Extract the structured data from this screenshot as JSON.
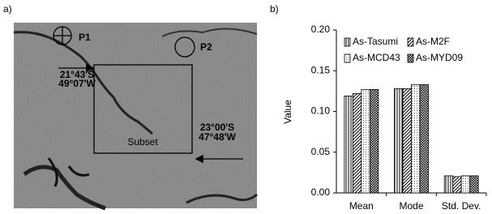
{
  "image_panel": {
    "label": "a)",
    "annotations": {
      "p1": "P1",
      "p2": "P2",
      "coord1": [
        "21°43'S",
        "49°07'W"
      ],
      "subset": "Subset",
      "coord2": [
        "23°00'S",
        "47°48'W"
      ]
    }
  },
  "chart_data": {
    "type": "bar",
    "panel_label": "b)",
    "y_label": "Value",
    "categories": [
      "Mean",
      "Mode",
      "Std. Dev."
    ],
    "series": [
      {
        "name": "As-Tasumi",
        "color": "#000000",
        "hatch": "vertical",
        "values": [
          0.119,
          0.128,
          0.021
        ]
      },
      {
        "name": "As-M2F",
        "color": "#000000",
        "hatch": "diagonal",
        "values": [
          0.122,
          0.128,
          0.02
        ]
      },
      {
        "name": "As-MCD43",
        "color": "#000000",
        "hatch": "dots",
        "values": [
          0.127,
          0.133,
          0.021
        ]
      },
      {
        "name": "As-MYD09",
        "color": "#000000",
        "hatch": "checks",
        "values": [
          0.127,
          0.133,
          0.021
        ]
      }
    ],
    "ylim": [
      0,
      0.2
    ],
    "yticks": [
      {
        "value": 0,
        "label": "0.00"
      },
      {
        "value": 0.05,
        "label": "0.05"
      },
      {
        "value": 0.1,
        "label": "0.10"
      },
      {
        "value": 0.15,
        "label": "0.15"
      },
      {
        "value": 0.2,
        "label": "0.20"
      }
    ],
    "legend": "top"
  }
}
